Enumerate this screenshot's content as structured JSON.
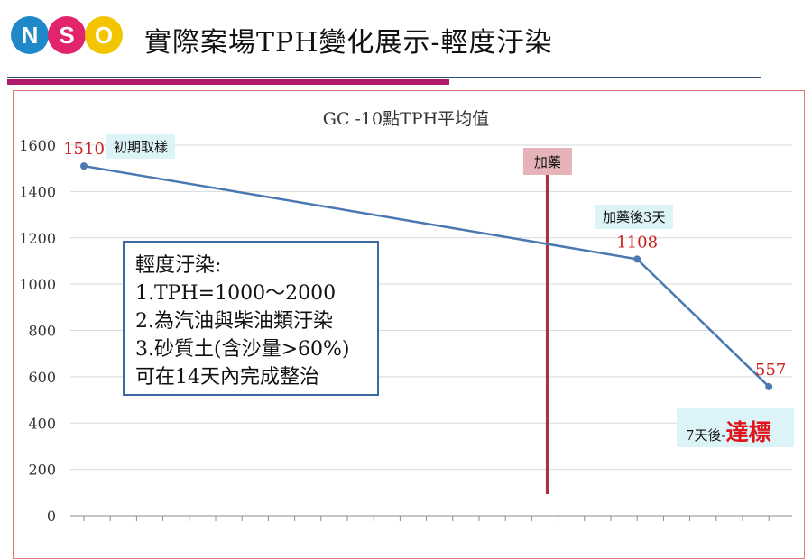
{
  "slide": {
    "title": "實際案場TPH變化展示-輕度汙染",
    "logo_letters": [
      "N",
      "S",
      "O"
    ],
    "logo_colors": [
      "#1e88c8",
      "#e2246c",
      "#f2c500"
    ]
  },
  "chart_data": {
    "type": "line",
    "title": "GC -10點TPH平均值",
    "xlabel": "",
    "ylabel": "",
    "ylim": [
      0,
      1600
    ],
    "yticks": [
      0,
      200,
      400,
      600,
      800,
      1000,
      1200,
      1400,
      1600
    ],
    "grid": true,
    "line_color": "#4a78b0",
    "series": [
      {
        "points": [
          {
            "x": 0,
            "y": 1510,
            "label": "1510"
          },
          {
            "x": 21,
            "y": 1108,
            "label": "1108"
          },
          {
            "x": 26,
            "y": 557,
            "label": "557"
          }
        ]
      }
    ],
    "x_index_count": 27,
    "marker_line": {
      "x": 17.6,
      "label": "加藥",
      "color": "#a8323e"
    },
    "annotations": {
      "start": "初期取樣",
      "after3": "加藥後3天",
      "after7_prefix": "7天後-",
      "after7_big": "達標"
    },
    "note": {
      "lines": [
        "輕度汙染:",
        "1.TPH=1000～2000",
        "2.為汽油與柴油類汙染",
        "3.砂質土(含沙量>60%)",
        "可在14天內完成整治"
      ]
    }
  }
}
